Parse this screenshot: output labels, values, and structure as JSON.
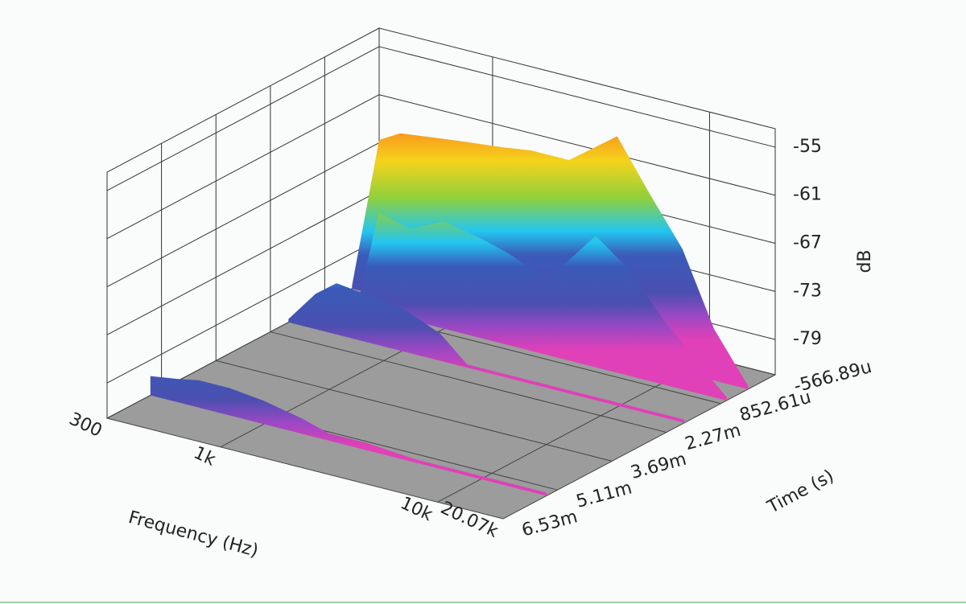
{
  "chart_data": {
    "type": "surface",
    "xlabel": "Frequency (Hz)",
    "ylabel": "Time (s)",
    "zlabel": "dB",
    "xscale": "log",
    "x": [
      300,
      400,
      500,
      700,
      1000,
      1500,
      2000,
      3000,
      5000,
      7000,
      10000,
      14000,
      20070
    ],
    "xlim": [
      300,
      20070
    ],
    "xticks": [
      300,
      {
        "value": 1000,
        "label": "1k"
      },
      {
        "value": 10000,
        "label": "10k"
      },
      {
        "value": 20070,
        "label": "20.07k"
      }
    ],
    "ylim": [
      -0.00056689,
      0.00653
    ],
    "yticks": [
      {
        "value": -0.00056689,
        "label": "-566.89u"
      },
      {
        "value": 0.00085261,
        "label": "852.61u"
      },
      {
        "value": 0.00227,
        "label": "2.27m"
      },
      {
        "value": 0.00369,
        "label": "3.69m"
      },
      {
        "value": 0.00511,
        "label": "5.11m"
      },
      {
        "value": 0.00653,
        "label": "6.53m"
      }
    ],
    "zlim": [
      -83.4,
      -52.7
    ],
    "zticks": [
      -55,
      -61,
      -67,
      -73,
      -79
    ],
    "grid": true,
    "floor_color": "#9c9c9c",
    "series": [
      {
        "time": 0.00014,
        "values": [
          -83,
          -64,
          -62.5,
          -62,
          -61.5,
          -61,
          -60.5,
          -60.5,
          -56,
          -62,
          -68,
          -77,
          -83
        ]
      },
      {
        "time": 0.0007,
        "values": [
          -83,
          -83,
          -71,
          -72,
          -70,
          -71,
          -72,
          -74,
          -67,
          -70,
          -75,
          -79,
          -83
        ]
      },
      {
        "time": 0.0018,
        "values": [
          -83,
          -79,
          -77,
          -77.5,
          -78,
          -80,
          -83,
          -83,
          -83,
          -83,
          -83,
          -83,
          -83
        ]
      },
      {
        "time": 0.0054,
        "values": [
          -81,
          -80.5,
          -80,
          -80,
          -80.5,
          -81.5,
          -82.5,
          -82.5,
          -83,
          -83,
          -83,
          -83,
          -83
        ]
      }
    ]
  }
}
